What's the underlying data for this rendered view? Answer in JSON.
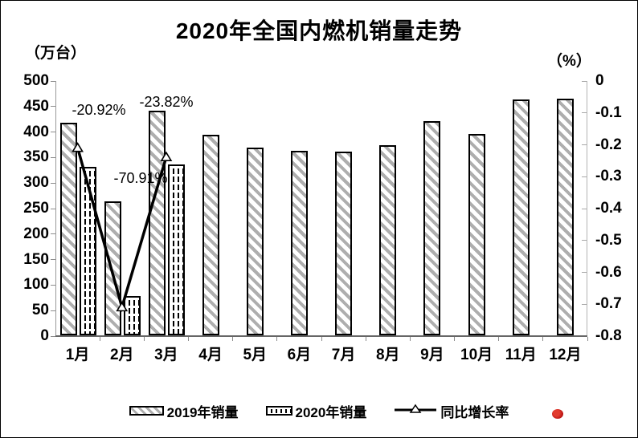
{
  "title": "2020年全国内燃机销量走势",
  "left_axis_unit": "（万台）",
  "right_axis_unit": "（%）",
  "legend": {
    "items": [
      {
        "label": "2019年销量",
        "swatch": "hatch"
      },
      {
        "label": "2020年销量",
        "swatch": "vdash"
      },
      {
        "label": "同比增长率",
        "swatch": "line"
      }
    ]
  },
  "colors": {
    "bar_border": "#000000",
    "hatch_stripe": "#aeaeae",
    "line": "#000000",
    "marker_fill": "#ffffff",
    "red_dot": "#b40f0f"
  },
  "chart_data": {
    "type": "combo-bar-line",
    "title": "2020年全国内燃机销量走势",
    "categories": [
      "1月",
      "2月",
      "3月",
      "4月",
      "5月",
      "6月",
      "7月",
      "8月",
      "9月",
      "10月",
      "11月",
      "12月"
    ],
    "series": [
      {
        "name": "2019年销量",
        "type": "bar",
        "pattern": "diagonal-hatch",
        "axis": "left",
        "values": [
          417,
          262,
          440,
          393,
          368,
          362,
          360,
          372,
          420,
          395,
          462,
          464
        ]
      },
      {
        "name": "2020年销量",
        "type": "bar",
        "pattern": "vertical-dash",
        "axis": "left",
        "values": [
          330,
          77,
          335,
          null,
          null,
          null,
          null,
          null,
          null,
          null,
          null,
          null
        ]
      },
      {
        "name": "同比增长率",
        "type": "line",
        "marker": "triangle",
        "axis": "right",
        "values": [
          -0.2092,
          -0.7091,
          -0.2382,
          null,
          null,
          null,
          null,
          null,
          null,
          null,
          null,
          null
        ],
        "point_labels": [
          "-20.92%",
          "-70.91%",
          "-23.82%"
        ]
      }
    ],
    "left_axis": {
      "unit": "（万台）",
      "min": 0,
      "max": 500,
      "step": 50,
      "ticks": [
        "500",
        "450",
        "400",
        "350",
        "300",
        "250",
        "200",
        "150",
        "100",
        "50",
        "0"
      ]
    },
    "right_axis": {
      "unit": "（%）",
      "min": -0.8,
      "max": 0,
      "step": 0.1,
      "ticks": [
        "0",
        "-0.1",
        "-0.2",
        "-0.3",
        "-0.4",
        "-0.5",
        "-0.6",
        "-0.7",
        "-0.8"
      ]
    },
    "legend_position": "bottom",
    "grid": false
  }
}
